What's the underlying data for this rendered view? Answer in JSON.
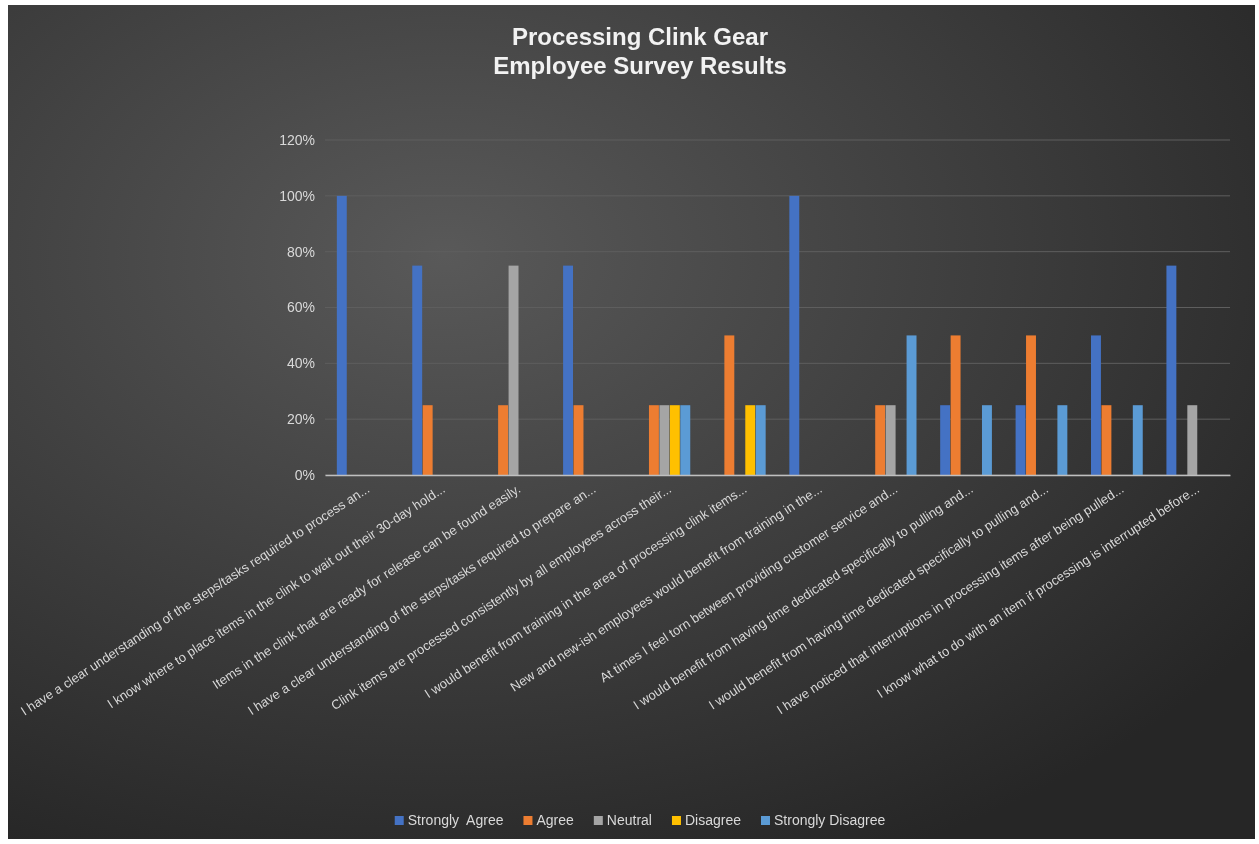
{
  "chart_data": {
    "type": "bar",
    "title": "Processing Clink Gear\nEmployee Survey Results",
    "categories": [
      "I have a clear understanding of the steps/tasks required to process an...",
      "I know where to place items in the clink to wait out their 30-day hold...",
      "Items in the clink that are ready for release can be found easily.",
      "I have a clear understanding of the steps/tasks required to prepare an...",
      "Clink items are processed consistently by all employees across their...",
      "I would benefit from training in the area of processing clink items...",
      "New and new-ish employees would benefit from training in the...",
      "At times I feel torn between providing customer service and...",
      "I would benefit from having time dedicated specifically to pulling and...",
      "I would benefit from having time dedicated specifically to pulling and...",
      "I have noticed that interruptions in processing items after being pulled...",
      "I know what to do with an item if processing is interrupted before..."
    ],
    "series": [
      {
        "name": "Strongly  Agree",
        "color": "#4472c4",
        "values": [
          100,
          75,
          0,
          75,
          0,
          0,
          100,
          0,
          25,
          25,
          50,
          75
        ]
      },
      {
        "name": "Agree",
        "color": "#ed7d31",
        "values": [
          0,
          25,
          25,
          25,
          25,
          50,
          0,
          25,
          50,
          50,
          25,
          0
        ]
      },
      {
        "name": "Neutral",
        "color": "#a5a5a5",
        "values": [
          0,
          0,
          75,
          0,
          25,
          0,
          0,
          25,
          0,
          0,
          0,
          25
        ]
      },
      {
        "name": "Disagree",
        "color": "#ffc000",
        "values": [
          0,
          0,
          0,
          0,
          25,
          25,
          0,
          0,
          0,
          0,
          0,
          0
        ]
      },
      {
        "name": "Strongly Disagree",
        "color": "#5b9bd5",
        "values": [
          0,
          0,
          0,
          0,
          25,
          25,
          0,
          50,
          25,
          25,
          25,
          0
        ]
      }
    ],
    "ylim": [
      0,
      120
    ],
    "yticks": [
      {
        "value": 0,
        "label": "0%"
      },
      {
        "value": 20,
        "label": "20%"
      },
      {
        "value": 40,
        "label": "40%"
      },
      {
        "value": 60,
        "label": "60%"
      },
      {
        "value": 80,
        "label": "80%"
      },
      {
        "value": 100,
        "label": "100%"
      },
      {
        "value": 120,
        "label": "120%"
      }
    ],
    "grid": "y",
    "legend": "bottom"
  }
}
